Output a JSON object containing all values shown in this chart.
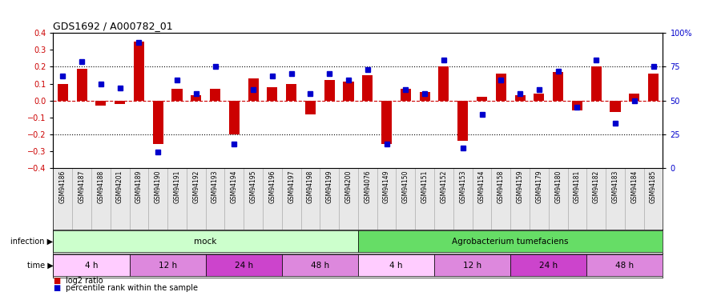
{
  "title": "GDS1692 / A000782_01",
  "samples": [
    "GSM94186",
    "GSM94187",
    "GSM94188",
    "GSM94201",
    "GSM94189",
    "GSM94190",
    "GSM94191",
    "GSM94192",
    "GSM94193",
    "GSM94194",
    "GSM94195",
    "GSM94196",
    "GSM94197",
    "GSM94198",
    "GSM94199",
    "GSM94200",
    "GSM94076",
    "GSM94149",
    "GSM94150",
    "GSM94151",
    "GSM94152",
    "GSM94153",
    "GSM94154",
    "GSM94158",
    "GSM94159",
    "GSM94179",
    "GSM94180",
    "GSM94181",
    "GSM94182",
    "GSM94183",
    "GSM94184",
    "GSM94185"
  ],
  "log2_ratio": [
    0.1,
    0.19,
    -0.03,
    -0.02,
    0.35,
    -0.26,
    0.07,
    0.03,
    0.07,
    -0.2,
    0.13,
    0.08,
    0.1,
    -0.08,
    0.12,
    0.11,
    0.15,
    -0.26,
    0.07,
    0.05,
    0.2,
    -0.24,
    0.02,
    0.16,
    0.03,
    0.04,
    0.17,
    -0.06,
    0.2,
    -0.07,
    0.04,
    0.16
  ],
  "percentile": [
    68,
    79,
    62,
    59,
    93,
    12,
    65,
    55,
    75,
    18,
    58,
    68,
    70,
    55,
    70,
    65,
    73,
    18,
    58,
    55,
    80,
    15,
    40,
    65,
    55,
    58,
    72,
    45,
    80,
    33,
    50,
    75
  ],
  "bar_color": "#cc0000",
  "dot_color": "#0000cc",
  "ylim_left": [
    -0.4,
    0.4
  ],
  "ylim_right": [
    0,
    100
  ],
  "infection_groups": [
    {
      "label": "mock",
      "start": 0,
      "end": 16,
      "color": "#ccffcc"
    },
    {
      "label": "Agrobacterium tumefaciens",
      "start": 16,
      "end": 32,
      "color": "#66dd66"
    }
  ],
  "time_groups": [
    {
      "label": "4 h",
      "start": 0,
      "end": 4,
      "color": "#ffccff"
    },
    {
      "label": "12 h",
      "start": 4,
      "end": 8,
      "color": "#dd88dd"
    },
    {
      "label": "24 h",
      "start": 8,
      "end": 12,
      "color": "#cc44cc"
    },
    {
      "label": "48 h",
      "start": 12,
      "end": 16,
      "color": "#dd88dd"
    },
    {
      "label": "4 h",
      "start": 16,
      "end": 20,
      "color": "#ffccff"
    },
    {
      "label": "12 h",
      "start": 20,
      "end": 24,
      "color": "#dd88dd"
    },
    {
      "label": "24 h",
      "start": 24,
      "end": 28,
      "color": "#cc44cc"
    },
    {
      "label": "48 h",
      "start": 28,
      "end": 32,
      "color": "#dd88dd"
    }
  ],
  "infection_label": "infection",
  "time_label": "time",
  "legend_bar_label": "log2 ratio",
  "legend_dot_label": "percentile rank within the sample"
}
